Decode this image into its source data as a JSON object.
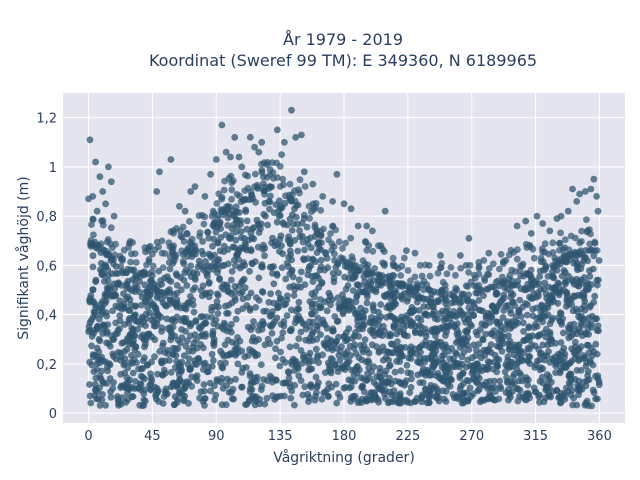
{
  "chart_data": {
    "type": "scatter",
    "title": "År 1979 - 2019",
    "subtitle": "Koordinat (Sweref 99 TM): E 349360, N 6189965",
    "xlabel": "Vågriktning (grader)",
    "ylabel": "Signifikant våghöjd (m)",
    "xlim": [
      -18,
      378
    ],
    "ylim": [
      -0.04,
      1.3
    ],
    "x_ticks": [
      0,
      45,
      90,
      135,
      180,
      225,
      270,
      315,
      360
    ],
    "x_tick_labels": [
      "0",
      "45",
      "90",
      "135",
      "180",
      "225",
      "270",
      "315",
      "360"
    ],
    "y_ticks": [
      0,
      0.2,
      0.4,
      0.6,
      0.8,
      1,
      1.2
    ],
    "y_tick_labels": [
      "0",
      "0,2",
      "0,4",
      "0,6",
      "0,8",
      "1",
      "1,2"
    ],
    "grid": true,
    "marker_color": "#2f5570",
    "background_color": "#e5e5ef",
    "band": {
      "x": [
        0,
        10,
        20,
        30,
        40,
        50,
        60,
        70,
        80,
        90,
        100,
        110,
        120,
        130,
        140,
        150,
        160,
        170,
        180,
        190,
        200,
        210,
        220,
        230,
        240,
        250,
        260,
        270,
        280,
        290,
        300,
        310,
        320,
        330,
        340,
        350,
        360
      ],
      "y_min": [
        0.03,
        0.03,
        0.03,
        0.03,
        0.03,
        0.03,
        0.03,
        0.03,
        0.03,
        0.03,
        0.03,
        0.03,
        0.03,
        0.03,
        0.03,
        0.03,
        0.03,
        0.04,
        0.04,
        0.04,
        0.04,
        0.04,
        0.04,
        0.04,
        0.04,
        0.04,
        0.04,
        0.04,
        0.04,
        0.04,
        0.04,
        0.04,
        0.04,
        0.04,
        0.03,
        0.03,
        0.02
      ],
      "y_max": [
        0.68,
        0.66,
        0.6,
        0.58,
        0.56,
        0.58,
        0.62,
        0.66,
        0.7,
        0.78,
        0.84,
        0.86,
        0.88,
        0.9,
        0.88,
        0.82,
        0.74,
        0.66,
        0.62,
        0.58,
        0.56,
        0.54,
        0.52,
        0.5,
        0.5,
        0.48,
        0.47,
        0.48,
        0.5,
        0.52,
        0.54,
        0.56,
        0.58,
        0.6,
        0.62,
        0.66,
        0.66
      ]
    },
    "outliers": [
      {
        "x": 1,
        "y": 1.11
      },
      {
        "x": 5,
        "y": 1.02
      },
      {
        "x": 14,
        "y": 1.0
      },
      {
        "x": 16,
        "y": 0.94
      },
      {
        "x": 3,
        "y": 0.88
      },
      {
        "x": 8,
        "y": 0.96
      },
      {
        "x": 10,
        "y": 0.9
      },
      {
        "x": 12,
        "y": 0.85
      },
      {
        "x": 0,
        "y": 0.87
      },
      {
        "x": 6,
        "y": 0.82
      },
      {
        "x": 18,
        "y": 0.8
      },
      {
        "x": 48,
        "y": 0.9
      },
      {
        "x": 50,
        "y": 0.98
      },
      {
        "x": 58,
        "y": 1.03
      },
      {
        "x": 64,
        "y": 0.84
      },
      {
        "x": 68,
        "y": 0.82
      },
      {
        "x": 72,
        "y": 0.9
      },
      {
        "x": 75,
        "y": 0.92
      },
      {
        "x": 82,
        "y": 0.88
      },
      {
        "x": 86,
        "y": 0.97
      },
      {
        "x": 90,
        "y": 1.03
      },
      {
        "x": 94,
        "y": 1.17
      },
      {
        "x": 97,
        "y": 1.06
      },
      {
        "x": 100,
        "y": 1.04
      },
      {
        "x": 103,
        "y": 1.12
      },
      {
        "x": 106,
        "y": 1.04
      },
      {
        "x": 108,
        "y": 1.0
      },
      {
        "x": 114,
        "y": 1.12
      },
      {
        "x": 117,
        "y": 1.08
      },
      {
        "x": 120,
        "y": 1.06
      },
      {
        "x": 122,
        "y": 1.1
      },
      {
        "x": 133,
        "y": 1.15
      },
      {
        "x": 136,
        "y": 1.05
      },
      {
        "x": 138,
        "y": 1.1
      },
      {
        "x": 143,
        "y": 1.23
      },
      {
        "x": 146,
        "y": 1.12
      },
      {
        "x": 150,
        "y": 1.13
      },
      {
        "x": 152,
        "y": 0.98
      },
      {
        "x": 158,
        "y": 0.93
      },
      {
        "x": 165,
        "y": 0.88
      },
      {
        "x": 172,
        "y": 0.86
      },
      {
        "x": 175,
        "y": 0.97
      },
      {
        "x": 180,
        "y": 0.85
      },
      {
        "x": 185,
        "y": 0.83
      },
      {
        "x": 190,
        "y": 0.76
      },
      {
        "x": 196,
        "y": 0.76
      },
      {
        "x": 200,
        "y": 0.74
      },
      {
        "x": 206,
        "y": 0.68
      },
      {
        "x": 209,
        "y": 0.82
      },
      {
        "x": 224,
        "y": 0.66
      },
      {
        "x": 230,
        "y": 0.65
      },
      {
        "x": 240,
        "y": 0.6
      },
      {
        "x": 248,
        "y": 0.64
      },
      {
        "x": 262,
        "y": 0.64
      },
      {
        "x": 266,
        "y": 0.6
      },
      {
        "x": 268,
        "y": 0.71
      },
      {
        "x": 282,
        "y": 0.65
      },
      {
        "x": 294,
        "y": 0.62
      },
      {
        "x": 302,
        "y": 0.76
      },
      {
        "x": 308,
        "y": 0.78
      },
      {
        "x": 312,
        "y": 0.73
      },
      {
        "x": 316,
        "y": 0.8
      },
      {
        "x": 320,
        "y": 0.77
      },
      {
        "x": 325,
        "y": 0.74
      },
      {
        "x": 330,
        "y": 0.79
      },
      {
        "x": 333,
        "y": 0.8
      },
      {
        "x": 338,
        "y": 0.82
      },
      {
        "x": 341,
        "y": 0.91
      },
      {
        "x": 344,
        "y": 0.86
      },
      {
        "x": 346,
        "y": 0.89
      },
      {
        "x": 350,
        "y": 0.9
      },
      {
        "x": 354,
        "y": 0.91
      },
      {
        "x": 356,
        "y": 0.95
      },
      {
        "x": 358,
        "y": 0.88
      },
      {
        "x": 359,
        "y": 0.82
      }
    ]
  }
}
